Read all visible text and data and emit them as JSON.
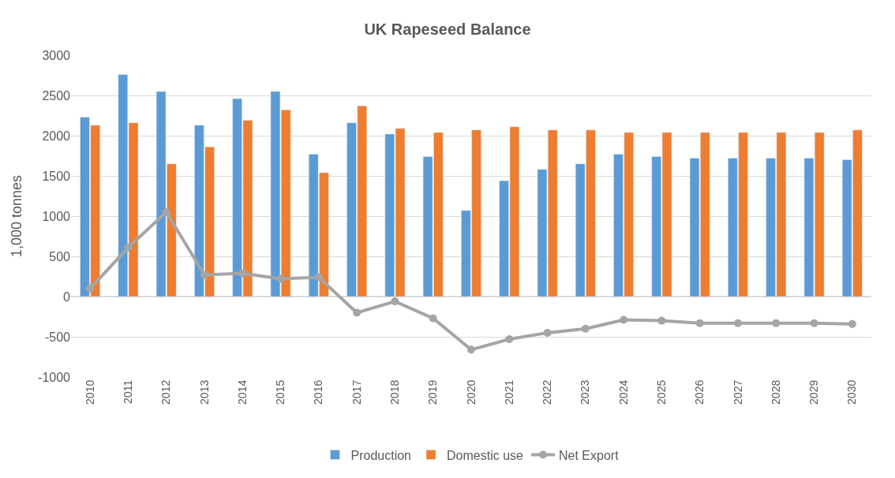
{
  "chart_data": {
    "type": "bar",
    "title": "UK Rapeseed Balance",
    "ylabel": "1,000 tonnes",
    "categories": [
      "2010",
      "2011",
      "2012",
      "2013",
      "2014",
      "2015",
      "2016",
      "2017",
      "2018",
      "2019",
      "2020",
      "2021",
      "2022",
      "2023",
      "2024",
      "2025",
      "2026",
      "2027",
      "2028",
      "2029",
      "2030"
    ],
    "series": [
      {
        "name": "Production",
        "color": "#5b9bd5",
        "values": [
          2230,
          2760,
          2550,
          2130,
          2460,
          2550,
          1770,
          2160,
          2020,
          1740,
          1070,
          1440,
          1580,
          1650,
          1770,
          1740,
          1720,
          1720,
          1720,
          1720,
          1700
        ]
      },
      {
        "name": "Domestic use",
        "color": "#ed7d31",
        "values": [
          2130,
          2160,
          1650,
          1860,
          2190,
          2320,
          1540,
          2370,
          2090,
          2040,
          2070,
          2110,
          2070,
          2070,
          2040,
          2040,
          2040,
          2040,
          2040,
          2040,
          2070
        ]
      },
      {
        "name": "Net Export",
        "type": "line",
        "color": "#a5a5a5",
        "marker": "circle",
        "values": [
          100,
          610,
          1050,
          270,
          290,
          220,
          240,
          -200,
          -60,
          -270,
          -660,
          -530,
          -450,
          -400,
          -290,
          -300,
          -330,
          -330,
          -330,
          -330,
          -340
        ]
      }
    ],
    "ylim": [
      -1000,
      3000
    ],
    "yticks": [
      -1000,
      -500,
      0,
      500,
      1000,
      1500,
      2000,
      2500,
      3000
    ],
    "grid": "y",
    "legend": "bottom"
  }
}
